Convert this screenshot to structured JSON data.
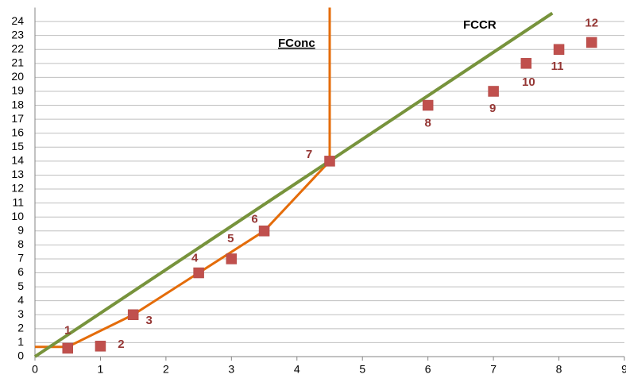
{
  "chart_data": {
    "type": "scatter",
    "xlim": [
      0,
      9
    ],
    "ylim": [
      0,
      25
    ],
    "xticks": [
      0,
      1,
      2,
      3,
      4,
      5,
      6,
      7,
      8,
      9
    ],
    "yticks": [
      0,
      1,
      2,
      3,
      4,
      5,
      6,
      7,
      8,
      9,
      10,
      11,
      12,
      13,
      14,
      15,
      16,
      17,
      18,
      19,
      20,
      21,
      22,
      23,
      24
    ],
    "grid": "y",
    "series": [
      {
        "type": "scatter",
        "color": "#c0504d",
        "x": [
          0.5,
          1,
          1.5,
          2.5,
          3,
          3.5,
          4.5,
          6,
          7,
          7.5,
          8,
          8.5
        ],
        "values": [
          0.6,
          0.75,
          3,
          6,
          7,
          9,
          14,
          18,
          19,
          21,
          22,
          22.5
        ],
        "point_labels": [
          "1",
          "2",
          "3",
          "4",
          "5",
          "6",
          "7",
          "8",
          "9",
          "10",
          "11",
          "12"
        ]
      },
      {
        "type": "line",
        "name": "FConc",
        "color": "#e46c0a",
        "x": [
          0,
          0.5,
          1.5,
          2.5,
          3.5,
          4.5,
          4.5
        ],
        "values": [
          0.7,
          0.7,
          3,
          6,
          9,
          14,
          25
        ]
      },
      {
        "type": "line",
        "name": "FCCR",
        "color": "#77933c",
        "x": [
          0,
          7.9
        ],
        "values": [
          0,
          24.6
        ]
      }
    ]
  }
}
